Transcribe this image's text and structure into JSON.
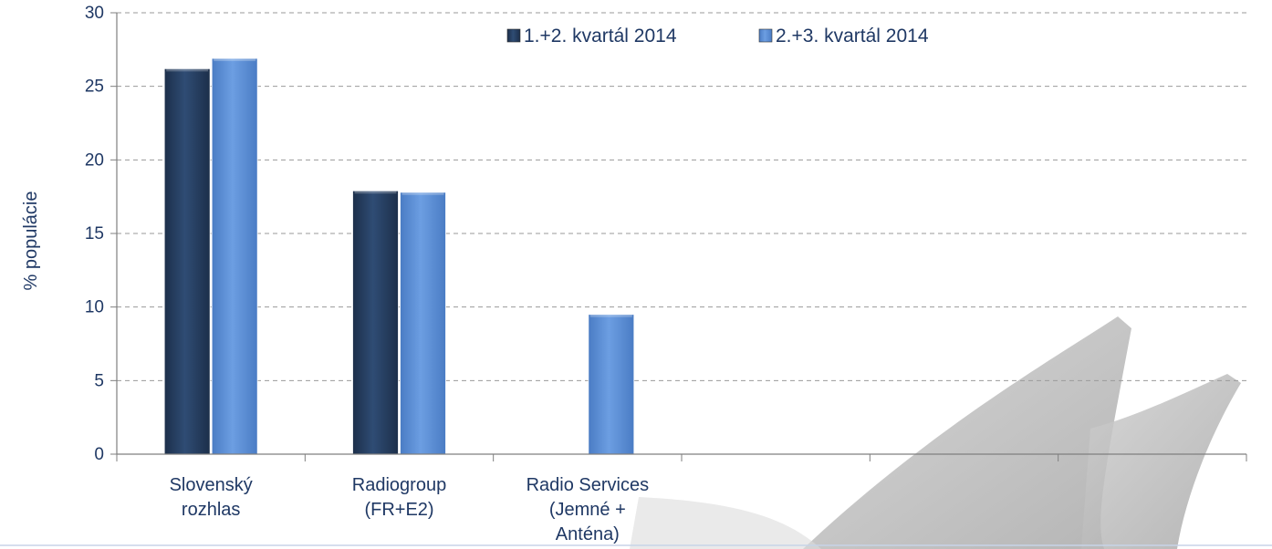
{
  "chart_data": {
    "type": "bar",
    "title": "",
    "xlabel": "",
    "ylabel": "% populácie",
    "ylim": [
      0,
      30
    ],
    "yticks": [
      0,
      5,
      10,
      15,
      20,
      25,
      30
    ],
    "grid": true,
    "legend_position": "top",
    "categories": [
      [
        "Slovenský",
        "rozhlas"
      ],
      [
        "Radiogroup",
        "(FR+E2)"
      ],
      [
        "Radio Services",
        "(Jemné +",
        "Anténa)"
      ],
      [],
      [],
      []
    ],
    "series": [
      {
        "name": "1.+2. kvartál 2014",
        "color": "#2a4468",
        "values": [
          26.2,
          17.9,
          null,
          null,
          null,
          null
        ]
      },
      {
        "name": "2.+3. kvartál 2014",
        "color": "#5b8fd6",
        "values": [
          26.9,
          17.8,
          9.5,
          null,
          null,
          null
        ]
      }
    ]
  }
}
